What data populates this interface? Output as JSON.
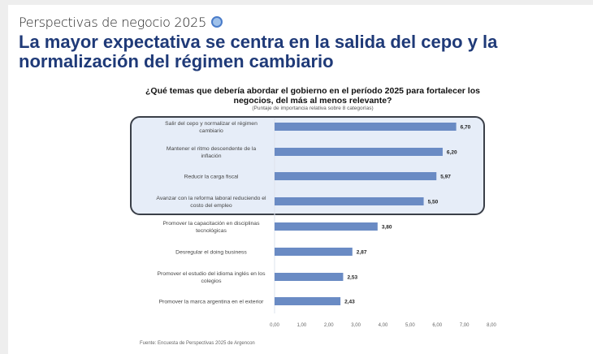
{
  "header": {
    "kicker": "Perspectivas de negocio 2025",
    "kicker_icon": "circle-slash-icon",
    "title": "La mayor expectativa se centra en la salida del cepo y la normalización del régimen cambiario"
  },
  "chart_data": {
    "type": "bar",
    "orientation": "horizontal",
    "title": "¿Qué temas que debería abordar el gobierno en el período 2025 para fortalecer los negocios, del más al menos relevante?",
    "subtitle": "(Puntaje de importancia relativa sobre 8 categorías)",
    "categories": [
      "Salir del cepo y normalizar el régimen cambiario",
      "Mantener el ritmo descendente de la inflación",
      "Reducir la carga fiscal",
      "Avanzar con la reforma laboral reduciendo el costo del empleo",
      "Promover la capacitación en disciplinas tecnológicas",
      "Desregular el doing business",
      "Promover el estudio del idioma inglés en los colegios",
      "Promover la marca argentina en el exterior"
    ],
    "values": [
      6.7,
      6.2,
      5.97,
      5.5,
      3.8,
      2.87,
      2.53,
      2.43
    ],
    "value_labels": [
      "6,70",
      "6,20",
      "5,97",
      "5,50",
      "3,80",
      "2,87",
      "2,53",
      "2,43"
    ],
    "xlim": [
      0,
      8
    ],
    "ticks": [
      "0,00",
      "1,00",
      "2,00",
      "3,00",
      "4,00",
      "5,00",
      "6,00",
      "7,00",
      "8,00"
    ],
    "highlighted_top": 4,
    "bar_color": "#6a8bc4",
    "highlight_bg": "#e6edf8",
    "grid": false
  },
  "footer": {
    "source": "Fuente: Encuesta de Perspectivas 2025 de Argencon"
  }
}
